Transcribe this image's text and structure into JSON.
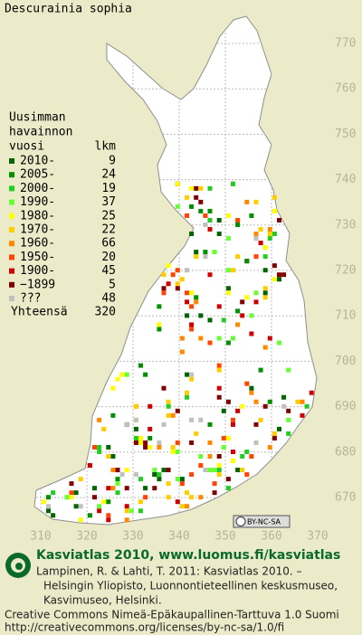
{
  "title": "Descurainia sophia",
  "legend": {
    "heading": [
      "Uusimman",
      "havainnon",
      "vuosi"
    ],
    "count_heading": "lkm",
    "rows": [
      {
        "label": "2010-",
        "count": "9",
        "color": "#006400"
      },
      {
        "label": "2005-",
        "count": "24",
        "color": "#009000"
      },
      {
        "label": "2000-",
        "count": "19",
        "color": "#22cc22"
      },
      {
        "label": "1990-",
        "count": "37",
        "color": "#66ff33"
      },
      {
        "label": "1980-",
        "count": "25",
        "color": "#ffff00"
      },
      {
        "label": "1970-",
        "count": "22",
        "color": "#ffcc00"
      },
      {
        "label": "1960-",
        "count": "66",
        "color": "#ff8800"
      },
      {
        "label": "1950-",
        "count": "20",
        "color": "#ff4400"
      },
      {
        "label": "1900-",
        "count": "45",
        "color": "#cc0000"
      },
      {
        "label": "−1899",
        "count": "5",
        "color": "#800000"
      },
      {
        "label": "???",
        "count": "48",
        "color": "#c0c0c0"
      }
    ],
    "total": {
      "label": "Yhteensä",
      "count": "320"
    }
  },
  "grid": {
    "y_labels": [
      "770",
      "760",
      "750",
      "740",
      "730",
      "720",
      "710",
      "700",
      "690",
      "680",
      "670"
    ],
    "x_labels": [
      "310",
      "320",
      "330",
      "340",
      "350",
      "360",
      "370"
    ]
  },
  "license_badge": "BY-NC-SA",
  "footer": {
    "brand": "Kasviatlas 2010, www.luomus.fi/kasviatlas",
    "citation": [
      "Lampinen, R. & Lahti, T. 2011: Kasviatlas 2010. –",
      "Helsingin Yliopisto, Luonnontieteellinen keskusmuseo,",
      "Kasvimuseo, Helsinki."
    ],
    "license": "Creative Commons Nimeä-Epäkaupallinen-Tarttuva 1.0 Suomi",
    "url": "http://creativecommons.org/licenses/by-nc-sa/1.0/fi"
  }
}
